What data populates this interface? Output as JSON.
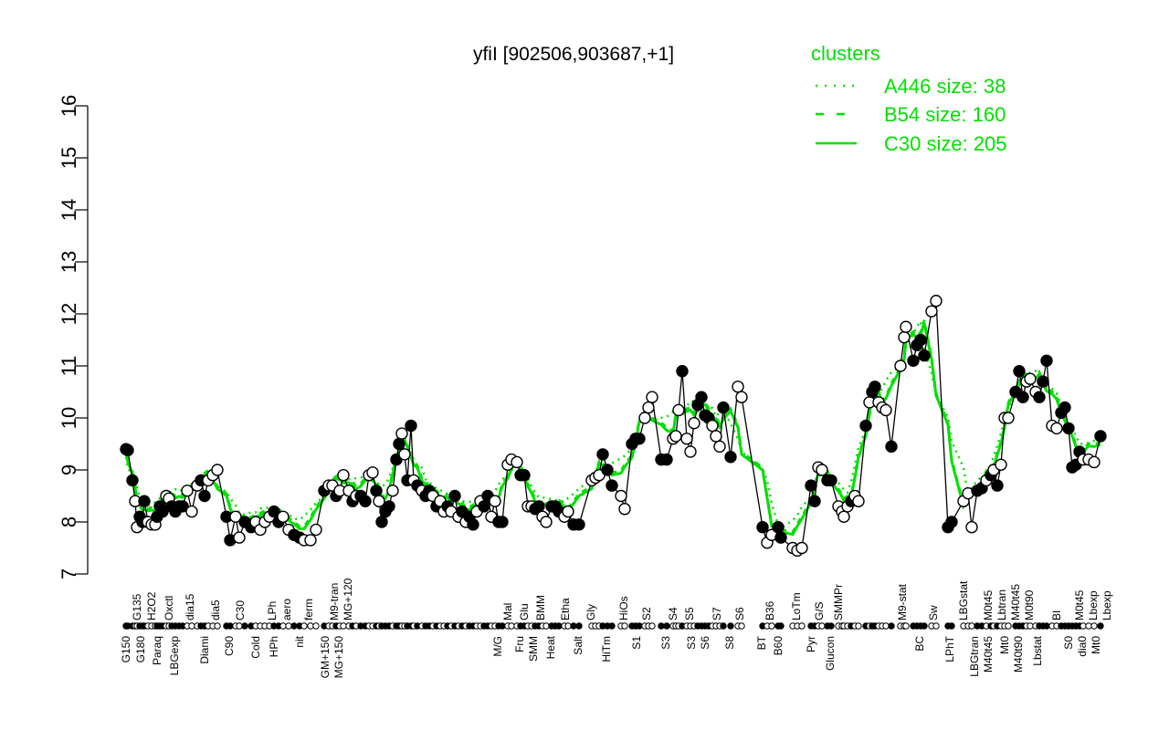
{
  "chart_data": {
    "type": "line",
    "title": "yfiI [902506,903687,+1]",
    "ylim": [
      7,
      16
    ],
    "yticks": [
      7,
      8,
      9,
      10,
      11,
      12,
      13,
      14,
      15,
      16
    ],
    "grid": false,
    "legend": {
      "title": "clusters",
      "placement": "top-right",
      "color": "#00e000",
      "entries": [
        {
          "label": "A446 size: 38",
          "style": "dotted"
        },
        {
          "label": "B54 size: 160",
          "style": "dashed"
        },
        {
          "label": "C30 size: 205",
          "style": "solid"
        }
      ]
    },
    "colors": {
      "points": "#000000",
      "clusters": "#00e000"
    },
    "points": [
      [
        9.4,
        1
      ],
      [
        9.38,
        1
      ],
      [
        8.8,
        1
      ],
      [
        8.4,
        0
      ],
      [
        7.9,
        0
      ],
      [
        8.1,
        1
      ],
      [
        8.0,
        1
      ],
      [
        8.4,
        1
      ],
      [
        8.0,
        0
      ],
      [
        7.95,
        0
      ],
      [
        7.95,
        0
      ],
      [
        8.1,
        1
      ],
      [
        8.3,
        1
      ],
      [
        8.2,
        1
      ],
      [
        8.5,
        0
      ],
      [
        8.45,
        0
      ],
      [
        8.3,
        1
      ],
      [
        8.2,
        1
      ],
      [
        8.3,
        1
      ],
      [
        8.3,
        1
      ],
      [
        8.6,
        0
      ],
      [
        8.2,
        0
      ],
      [
        8.7,
        0
      ],
      [
        8.8,
        1
      ],
      [
        8.5,
        1
      ],
      [
        8.8,
        0
      ],
      [
        8.9,
        0
      ],
      [
        9.0,
        0
      ],
      [
        8.1,
        1
      ],
      [
        7.65,
        1
      ],
      [
        8.1,
        0
      ],
      [
        7.7,
        0
      ],
      [
        8.0,
        1
      ],
      [
        7.9,
        1
      ],
      [
        8.0,
        0
      ],
      [
        7.85,
        0
      ],
      [
        8.0,
        0
      ],
      [
        8.1,
        0
      ],
      [
        8.2,
        1
      ],
      [
        8.0,
        1
      ],
      [
        8.1,
        0
      ],
      [
        7.85,
        0
      ],
      [
        7.75,
        1
      ],
      [
        7.7,
        1
      ],
      [
        7.65,
        0
      ],
      [
        7.65,
        0
      ],
      [
        7.85,
        0
      ],
      [
        8.6,
        1
      ],
      [
        8.7,
        0
      ],
      [
        8.7,
        0
      ],
      [
        8.5,
        1
      ],
      [
        8.6,
        0
      ],
      [
        8.9,
        0
      ],
      [
        8.6,
        0
      ],
      [
        8.4,
        1
      ],
      [
        8.5,
        0
      ],
      [
        8.5,
        1
      ],
      [
        8.4,
        1
      ],
      [
        8.9,
        0
      ],
      [
        8.95,
        0
      ],
      [
        8.6,
        1
      ],
      [
        8.4,
        0
      ],
      [
        8.0,
        1
      ],
      [
        8.2,
        1
      ],
      [
        8.3,
        1
      ],
      [
        8.6,
        0
      ],
      [
        9.2,
        1
      ],
      [
        9.5,
        1
      ],
      [
        9.7,
        0
      ],
      [
        9.3,
        0
      ],
      [
        8.8,
        1
      ],
      [
        9.85,
        1
      ],
      [
        8.8,
        0
      ],
      [
        8.7,
        1
      ],
      [
        8.6,
        0
      ],
      [
        8.5,
        1
      ],
      [
        8.6,
        1
      ],
      [
        8.5,
        0
      ],
      [
        8.3,
        1
      ],
      [
        8.4,
        0
      ],
      [
        8.2,
        0
      ],
      [
        8.3,
        1
      ],
      [
        8.2,
        0
      ],
      [
        8.5,
        1
      ],
      [
        8.1,
        0
      ],
      [
        8.2,
        1
      ],
      [
        8.0,
        0
      ],
      [
        8.1,
        1
      ],
      [
        7.95,
        1
      ],
      [
        8.2,
        0
      ],
      [
        8.4,
        0
      ],
      [
        8.3,
        1
      ],
      [
        8.5,
        1
      ],
      [
        8.1,
        0
      ],
      [
        8.4,
        0
      ],
      [
        8.0,
        1
      ],
      [
        8.0,
        1
      ],
      [
        9.1,
        0
      ],
      [
        9.2,
        0
      ],
      [
        9.15,
        0
      ],
      [
        8.9,
        1
      ],
      [
        8.9,
        1
      ],
      [
        8.3,
        0
      ],
      [
        8.3,
        0
      ],
      [
        8.25,
        1
      ],
      [
        8.3,
        1
      ],
      [
        8.1,
        0
      ],
      [
        8.0,
        0
      ],
      [
        8.3,
        1
      ],
      [
        8.3,
        1
      ],
      [
        8.2,
        1
      ],
      [
        8.1,
        0
      ],
      [
        8.2,
        0
      ],
      [
        7.95,
        1
      ],
      [
        7.95,
        1
      ],
      [
        8.8,
        0
      ],
      [
        8.85,
        0
      ],
      [
        8.9,
        0
      ],
      [
        9.3,
        1
      ],
      [
        9.0,
        1
      ],
      [
        8.7,
        1
      ],
      [
        8.5,
        0
      ],
      [
        8.25,
        0
      ],
      [
        9.5,
        1
      ],
      [
        9.6,
        1
      ],
      [
        9.6,
        1
      ],
      [
        10.0,
        0
      ],
      [
        10.2,
        0
      ],
      [
        10.4,
        0
      ],
      [
        9.2,
        1
      ],
      [
        9.2,
        1
      ],
      [
        9.6,
        0
      ],
      [
        9.65,
        0
      ],
      [
        10.15,
        0
      ],
      [
        10.9,
        1
      ],
      [
        9.6,
        0
      ],
      [
        9.35,
        0
      ],
      [
        9.9,
        0
      ],
      [
        10.25,
        1
      ],
      [
        10.4,
        1
      ],
      [
        10.05,
        1
      ],
      [
        10.0,
        1
      ],
      [
        9.85,
        0
      ],
      [
        9.65,
        0
      ],
      [
        9.45,
        0
      ],
      [
        10.2,
        1
      ],
      [
        9.25,
        1
      ],
      [
        10.6,
        0
      ],
      [
        10.4,
        0
      ],
      [
        7.9,
        1
      ],
      [
        7.6,
        0
      ],
      [
        7.75,
        0
      ],
      [
        7.9,
        1
      ],
      [
        7.7,
        1
      ],
      [
        7.5,
        0
      ],
      [
        7.45,
        0
      ],
      [
        7.5,
        0
      ],
      [
        8.7,
        1
      ],
      [
        8.4,
        1
      ],
      [
        9.05,
        0
      ],
      [
        9.0,
        0
      ],
      [
        8.8,
        1
      ],
      [
        8.8,
        1
      ],
      [
        8.3,
        0
      ],
      [
        8.2,
        0
      ],
      [
        8.1,
        0
      ],
      [
        8.3,
        0
      ],
      [
        8.4,
        1
      ],
      [
        8.5,
        0
      ],
      [
        8.4,
        0
      ],
      [
        9.85,
        1
      ],
      [
        10.3,
        0
      ],
      [
        10.5,
        1
      ],
      [
        10.6,
        1
      ],
      [
        10.3,
        0
      ],
      [
        10.2,
        0
      ],
      [
        10.15,
        0
      ],
      [
        9.45,
        1
      ],
      [
        11.0,
        0
      ],
      [
        11.55,
        0
      ],
      [
        11.75,
        0
      ],
      [
        11.1,
        1
      ],
      [
        11.4,
        1
      ],
      [
        11.5,
        1
      ],
      [
        11.2,
        1
      ],
      [
        12.05,
        0
      ],
      [
        12.25,
        0
      ],
      [
        7.9,
        1
      ],
      [
        8.0,
        1
      ],
      [
        8.4,
        0
      ],
      [
        8.55,
        0
      ],
      [
        7.9,
        0
      ],
      [
        8.6,
        1
      ],
      [
        8.65,
        1
      ],
      [
        8.8,
        0
      ],
      [
        8.9,
        1
      ],
      [
        9.0,
        0
      ],
      [
        8.7,
        1
      ],
      [
        9.1,
        0
      ],
      [
        10.0,
        0
      ],
      [
        10.0,
        0
      ],
      [
        10.5,
        1
      ],
      [
        10.9,
        1
      ],
      [
        10.4,
        1
      ],
      [
        10.7,
        0
      ],
      [
        10.75,
        0
      ],
      [
        10.5,
        0
      ],
      [
        10.4,
        1
      ],
      [
        10.7,
        1
      ],
      [
        11.1,
        1
      ],
      [
        9.85,
        0
      ],
      [
        9.8,
        0
      ],
      [
        10.1,
        1
      ],
      [
        10.2,
        1
      ],
      [
        9.8,
        1
      ],
      [
        9.05,
        1
      ],
      [
        9.1,
        1
      ],
      [
        9.35,
        1
      ],
      [
        9.2,
        0
      ],
      [
        9.2,
        0
      ],
      [
        9.15,
        0
      ],
      [
        9.65,
        1
      ]
    ],
    "xtick_labels_top": [
      "G135",
      "H2O2",
      "Oxctl",
      "dia15",
      "dia5",
      "C30",
      "LPh",
      "aero",
      "ferm",
      "M9-tran",
      "MG+120",
      "Mal",
      "Glu",
      "BMM",
      "Etha",
      "Gly",
      "HiOs",
      "S2",
      "S4",
      "S5",
      "S7",
      "S6",
      "B36",
      "LoTm",
      "G/S",
      "SMMPr",
      "M9-stat",
      "Sw",
      "LBGstat",
      "M0t45",
      "Lbtran",
      "M40t45",
      "M0t90",
      "BI",
      "M0t45",
      "Lbexp",
      "Lbexp"
    ],
    "xtick_labels_bottom": [
      "G150",
      "G180",
      "Paraq",
      "LBGexp",
      "Diami",
      "C90",
      "Cold",
      "HPh",
      "nit",
      "GM+150",
      "MG+150",
      "M/G",
      "Fru",
      "SMM",
      "Heat",
      "Salt",
      "HiTm",
      "S1",
      "S3",
      "S3",
      "S6",
      "S8",
      "BT",
      "B60",
      "Pyr",
      "Glucon",
      "BC",
      "LPhT",
      "LBGtran",
      "M40t45",
      "Mt0",
      "M40t90",
      "Lbstat",
      "S0",
      "dia0",
      "Mt0"
    ]
  }
}
